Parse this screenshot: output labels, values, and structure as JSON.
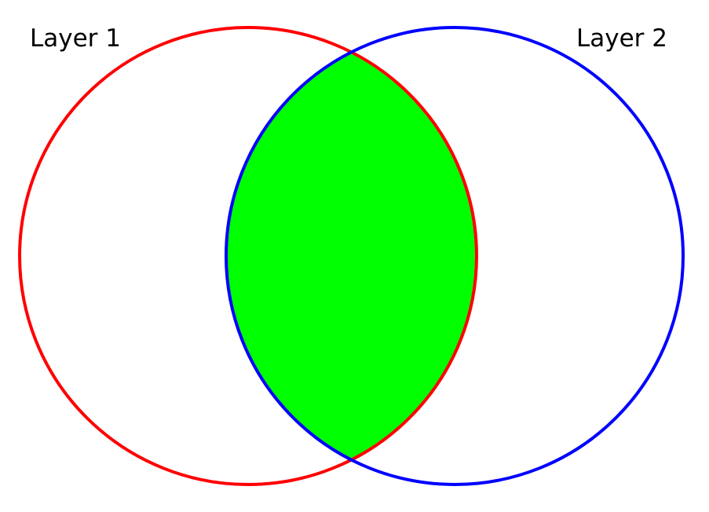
{
  "diagram": {
    "type": "venn",
    "layers": [
      {
        "label": "Layer 1",
        "stroke_color": "#ff0000"
      },
      {
        "label": "Layer 2",
        "stroke_color": "#0000ff"
      }
    ],
    "intersection": {
      "fill_color": "#00ff00"
    },
    "background_color": "#ffffff"
  }
}
